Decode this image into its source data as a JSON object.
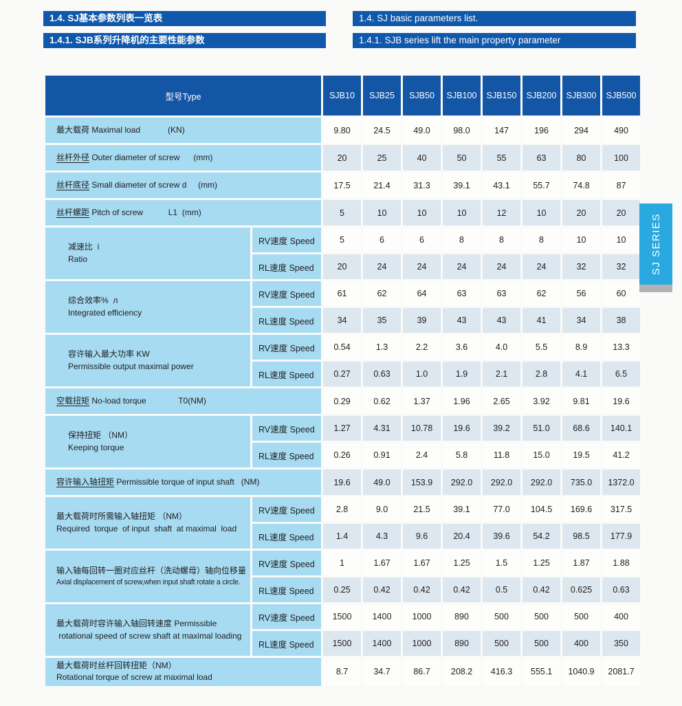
{
  "titles": {
    "row1_zh": "1.4. SJ基本参数列表一览表",
    "row1_en": "1.4. SJ basic parameters list.",
    "row2_zh": "1.4.1. SJB系列升降机的主要性能参数",
    "row2_en": "1.4.1. SJB series lift the main property parameter"
  },
  "side_tab": {
    "label": "SJ SERIES",
    "color": "#2aa8e0"
  },
  "colors": {
    "title_bar_blue": "#0f58ab",
    "table_header_blue": "#1356a6",
    "label_cyan": "#a7dbf2",
    "row_shade": "#dde7ef",
    "row_plain": "#fdfdfc"
  },
  "table": {
    "type_label": "型号Type",
    "models": [
      "SJB10",
      "SJB25",
      "SJB50",
      "SJB100",
      "SJB150",
      "SJB200",
      "SJB300",
      "SJB500"
    ],
    "speed_rv": "RV速度 Speed",
    "speed_rl": "RL速度 Speed",
    "rows": [
      {
        "zh": "最大载荷",
        "rest": " Maximal load            (KN)",
        "u": false,
        "values": [
          "9.80",
          "24.5",
          "49.0",
          "98.0",
          "147",
          "196",
          "294",
          "490"
        ]
      },
      {
        "zh": "丝杆外径",
        "rest": " Outer diameter of screw      (mm)",
        "u": true,
        "values": [
          "20",
          "25",
          "40",
          "50",
          "55",
          "63",
          "80",
          "100"
        ]
      },
      {
        "zh": "丝杆底径",
        "rest": " Small diameter of screw d     (mm)",
        "u": true,
        "values": [
          "17.5",
          "21.4",
          "31.3",
          "39.1",
          "43.1",
          "55.7",
          "74.8",
          "87"
        ]
      },
      {
        "zh": "丝杆螺距",
        "rest": " Pitch of screw           L1  (mm)",
        "u": true,
        "values": [
          "5",
          "10",
          "10",
          "10",
          "12",
          "10",
          "20",
          "20"
        ]
      },
      {
        "zh": "减速比  i",
        "l2": "Ratio",
        "pad": true,
        "rv": [
          "5",
          "6",
          "6",
          "8",
          "8",
          "8",
          "10",
          "10"
        ],
        "rl": [
          "20",
          "24",
          "24",
          "24",
          "24",
          "24",
          "32",
          "32"
        ]
      },
      {
        "zh": "综合效率%  л",
        "l2": "Integrated efficiency",
        "pad": true,
        "rv": [
          "61",
          "62",
          "64",
          "63",
          "63",
          "62",
          "56",
          "60"
        ],
        "rl": [
          "34",
          "35",
          "39",
          "43",
          "43",
          "41",
          "34",
          "38"
        ]
      },
      {
        "zh": "容许输入最大功率 KW",
        "l2": "Permissible output maximal power",
        "pad": true,
        "rv": [
          "0.54",
          "1.3",
          "2.2",
          "3.6",
          "4.0",
          "5.5",
          "8.9",
          "13.3"
        ],
        "rl": [
          "0.27",
          "0.63",
          "1.0",
          "1.9",
          "2.1",
          "2.8",
          "4.1",
          "6.5"
        ]
      },
      {
        "zh": "空载扭矩",
        "rest": " No-load torque              T0(NM)",
        "u": true,
        "values": [
          "0.29",
          "0.62",
          "1.37",
          "1.96",
          "2.65",
          "3.92",
          "9.81",
          "19.6"
        ]
      },
      {
        "zh": "保持扭矩 （NM）",
        "l2": "Keeping torque",
        "pad": true,
        "rv": [
          "1.27",
          "4.31",
          "10.78",
          "19.6",
          "39.2",
          "51.0",
          "68.6",
          "140.1"
        ],
        "rl": [
          "0.26",
          "0.91",
          "2.4",
          "5.8",
          "11.8",
          "15.0",
          "19.5",
          "41.2"
        ]
      },
      {
        "zh": "容许输入轴扭矩",
        "rest": " Permissible torque of input shaft   (NM)",
        "u": true,
        "values": [
          "19.6",
          "49.0",
          "153.9",
          "292.0",
          "292.0",
          "292.0",
          "735.0",
          "1372.0"
        ]
      },
      {
        "zh": "最大载荷时所需输入轴扭矩 （NM）",
        "l2": "Required  torque  of input  shaft  at maximal  load",
        "rv": [
          "2.8",
          "9.0",
          "21.5",
          "39.1",
          "77.0",
          "104.5",
          "169.6",
          "317.5"
        ],
        "rl": [
          "1.4",
          "4.3",
          "9.6",
          "20.4",
          "39.6",
          "54.2",
          "98.5",
          "177.9"
        ]
      },
      {
        "zh": "输入轴每回转一圈对应丝杆（洗动螺母）轴向位移量",
        "l2": "Axial displacement of screw,when input shaft rotate a circle.",
        "small": true,
        "rv": [
          "1",
          "1.67",
          "1.67",
          "1.25",
          "1.5",
          "1.25",
          "1.87",
          "1.88"
        ],
        "rl": [
          "0.25",
          "0.42",
          "0.42",
          "0.42",
          "0.5",
          "0.42",
          "0.625",
          "0.63"
        ]
      },
      {
        "zh": "最大载荷时容许输入轴回转速度 Permissible",
        "l2": " rotational speed of screw shaft at maximal loading",
        "rv": [
          "1500",
          "1400",
          "1000",
          "890",
          "500",
          "500",
          "500",
          "400"
        ],
        "rl": [
          "1500",
          "1400",
          "1000",
          "890",
          "500",
          "500",
          "400",
          "350"
        ]
      },
      {
        "zh": "最大载荷时丝杆回转扭矩（NM）",
        "l2": "Rotational torque of screw at maximal load",
        "values": [
          "8.7",
          "34.7",
          "86.7",
          "208.2",
          "416.3",
          "555.1",
          "1040.9",
          "2081.7"
        ]
      }
    ]
  }
}
